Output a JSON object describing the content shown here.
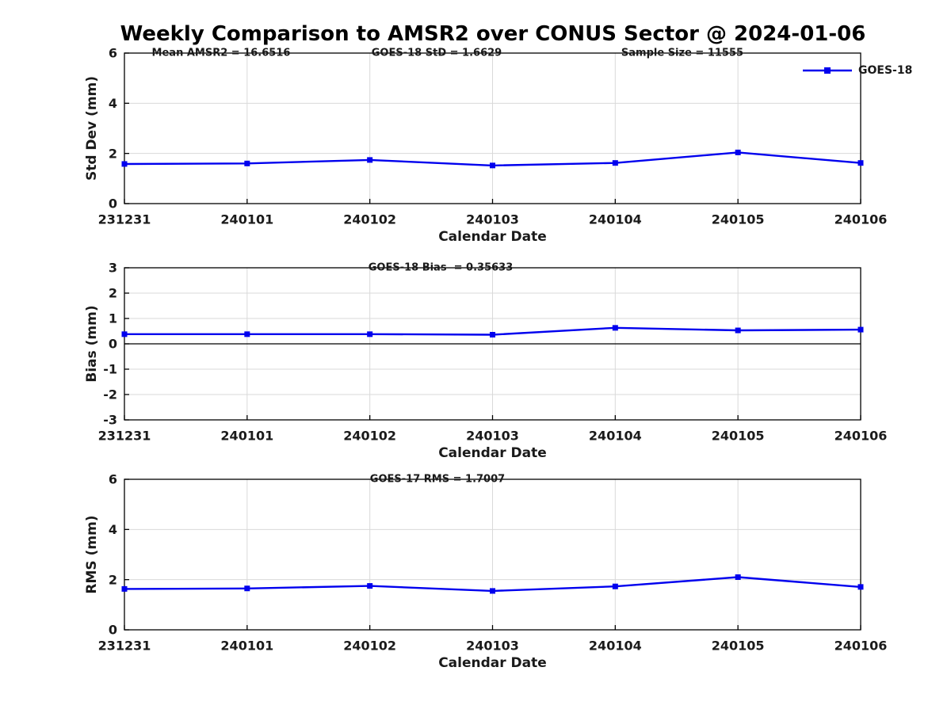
{
  "figure": {
    "title": "Weekly Comparison to AMSR2 over CONUS Sector @ 2024-01-06",
    "colors": {
      "line": "#0000ee",
      "grid": "#d9d9d9",
      "axis": "#000000",
      "text": "#1a1a1a",
      "background": "#ffffff"
    },
    "legend": {
      "label": "GOES-18",
      "marker": "filled-square-on-line",
      "position": "top-right-of-first-subplot"
    }
  },
  "chart_data": [
    {
      "type": "line",
      "title": "",
      "ylabel": "Std Dev (mm)",
      "xlabel": "Calendar Date",
      "categories": [
        "231231",
        "240101",
        "240102",
        "240103",
        "240104",
        "240105",
        "240106"
      ],
      "series": [
        {
          "name": "GOES-18",
          "values": [
            1.58,
            1.6,
            1.74,
            1.52,
            1.62,
            2.04,
            1.62
          ]
        }
      ],
      "ylim": [
        0,
        6
      ],
      "yticks": [
        0,
        2,
        4,
        6
      ],
      "grid": true,
      "legend_entries": [
        "GOES-18"
      ],
      "annotations": [
        "Mean AMSR2 = 16.6516",
        "GOES-18 StD = 1.6629",
        "Sample Size = 11555"
      ]
    },
    {
      "type": "line",
      "title": "",
      "ylabel": "Bias (mm)",
      "xlabel": "Calendar Date",
      "categories": [
        "231231",
        "240101",
        "240102",
        "240103",
        "240104",
        "240105",
        "240106"
      ],
      "series": [
        {
          "name": "GOES-18",
          "values": [
            0.38,
            0.38,
            0.38,
            0.36,
            0.63,
            0.53,
            0.56
          ]
        }
      ],
      "ylim": [
        -3,
        3
      ],
      "yticks": [
        -3,
        -2,
        -1,
        0,
        1,
        2,
        3
      ],
      "grid": true,
      "zero_line": true,
      "annotations": [
        "GOES-18 Bias  = 0.35633"
      ]
    },
    {
      "type": "line",
      "title": "",
      "ylabel": "RMS (mm)",
      "xlabel": "Calendar Date",
      "categories": [
        "231231",
        "240101",
        "240102",
        "240103",
        "240104",
        "240105",
        "240106"
      ],
      "series": [
        {
          "name": "GOES-18",
          "values": [
            1.63,
            1.65,
            1.75,
            1.55,
            1.73,
            2.1,
            1.71
          ]
        }
      ],
      "ylim": [
        0,
        6
      ],
      "yticks": [
        0,
        2,
        4,
        6
      ],
      "grid": true,
      "annotations": [
        "GOES-17 RMS = 1.7007"
      ]
    }
  ]
}
